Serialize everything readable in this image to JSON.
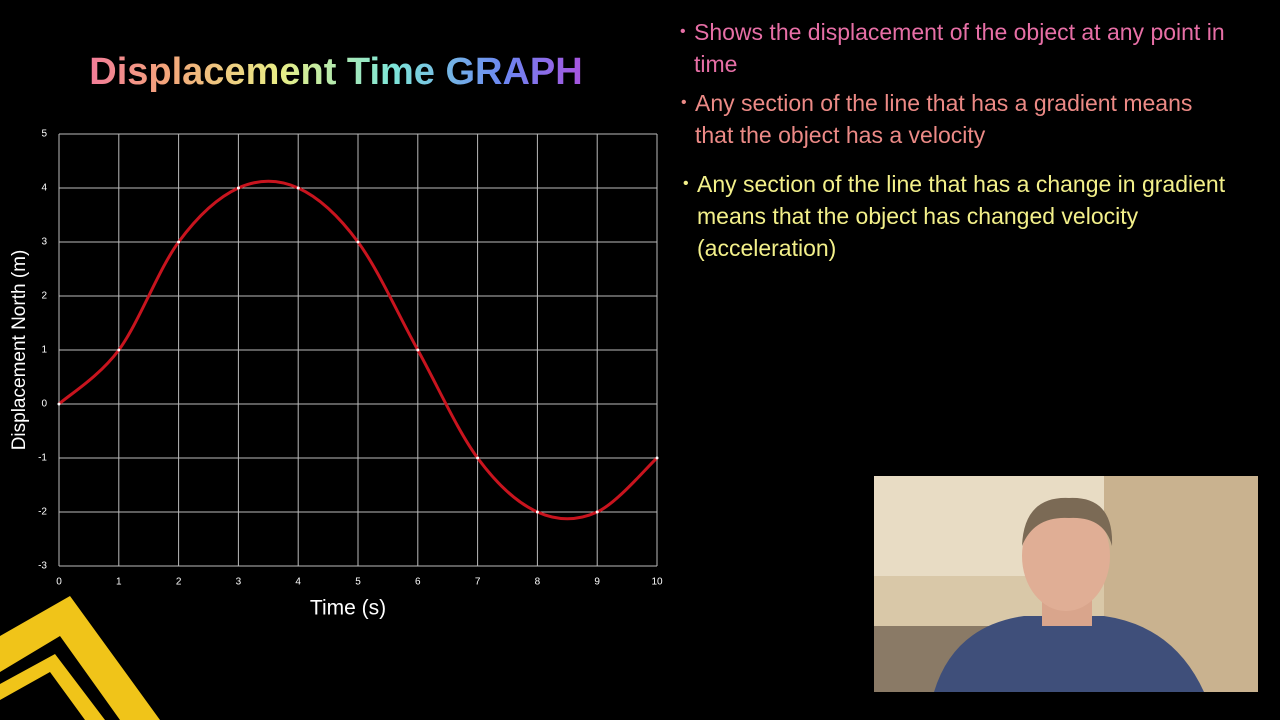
{
  "chart_data": {
    "type": "line",
    "title": "Displacement Time GRAPH",
    "x_label": "Time (s)",
    "y_label": "Displacement North (m)",
    "x": [
      0,
      1,
      2,
      3,
      4,
      5,
      6,
      7,
      8,
      9,
      10
    ],
    "series": [
      {
        "color": "#c8141e",
        "values": [
          0,
          1,
          3,
          4,
          4,
          3,
          1,
          -1,
          -2,
          -2,
          -1
        ]
      }
    ],
    "xlim": [
      0,
      10
    ],
    "xticks": [
      0,
      1,
      2,
      3,
      4,
      5,
      6,
      7,
      8,
      9,
      10
    ],
    "ylim": [
      -3,
      5
    ],
    "yticks": [
      -3,
      -2,
      -1,
      0,
      1,
      2,
      3,
      4,
      5
    ],
    "grid": true
  },
  "bullets": [
    "Shows the displacement of the object at any point in time",
    "Any section of the line that has a gradient means that the object has a velocity",
    "Any section of the line that has a change in gradient means that the object has changed velocity (acceleration)"
  ]
}
